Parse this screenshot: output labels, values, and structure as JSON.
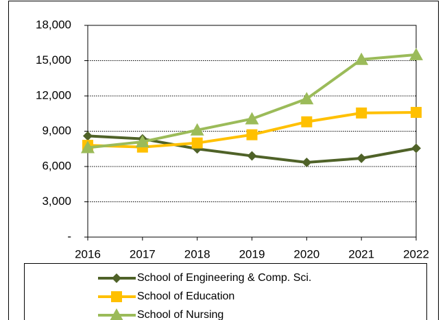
{
  "chart_data": {
    "type": "line",
    "categories": [
      "2016",
      "2017",
      "2018",
      "2019",
      "2020",
      "2021",
      "2022"
    ],
    "series": [
      {
        "name": "School of Engineering & Comp. Sci.",
        "color": "#4f6228",
        "marker": "diamond",
        "values": [
          8600,
          8350,
          7500,
          6900,
          6350,
          6700,
          7550
        ]
      },
      {
        "name": "School of Education",
        "color": "#ffc000",
        "marker": "square",
        "values": [
          7800,
          7650,
          8000,
          8700,
          9800,
          10550,
          10600
        ]
      },
      {
        "name": "School of Nursing",
        "color": "#9bbb59",
        "marker": "triangle",
        "values": [
          7600,
          8100,
          9100,
          10050,
          11750,
          15100,
          15500
        ]
      }
    ],
    "ylim": [
      0,
      18000
    ],
    "yticks": [
      {
        "value": 0,
        "label": "-"
      },
      {
        "value": 3000,
        "label": "3,000"
      },
      {
        "value": 6000,
        "label": "6,000"
      },
      {
        "value": 9000,
        "label": "9,000"
      },
      {
        "value": 12000,
        "label": "12,000"
      },
      {
        "value": 15000,
        "label": "15,000"
      },
      {
        "value": 18000,
        "label": "18,000"
      }
    ],
    "grid": true,
    "legend": "bottom"
  }
}
